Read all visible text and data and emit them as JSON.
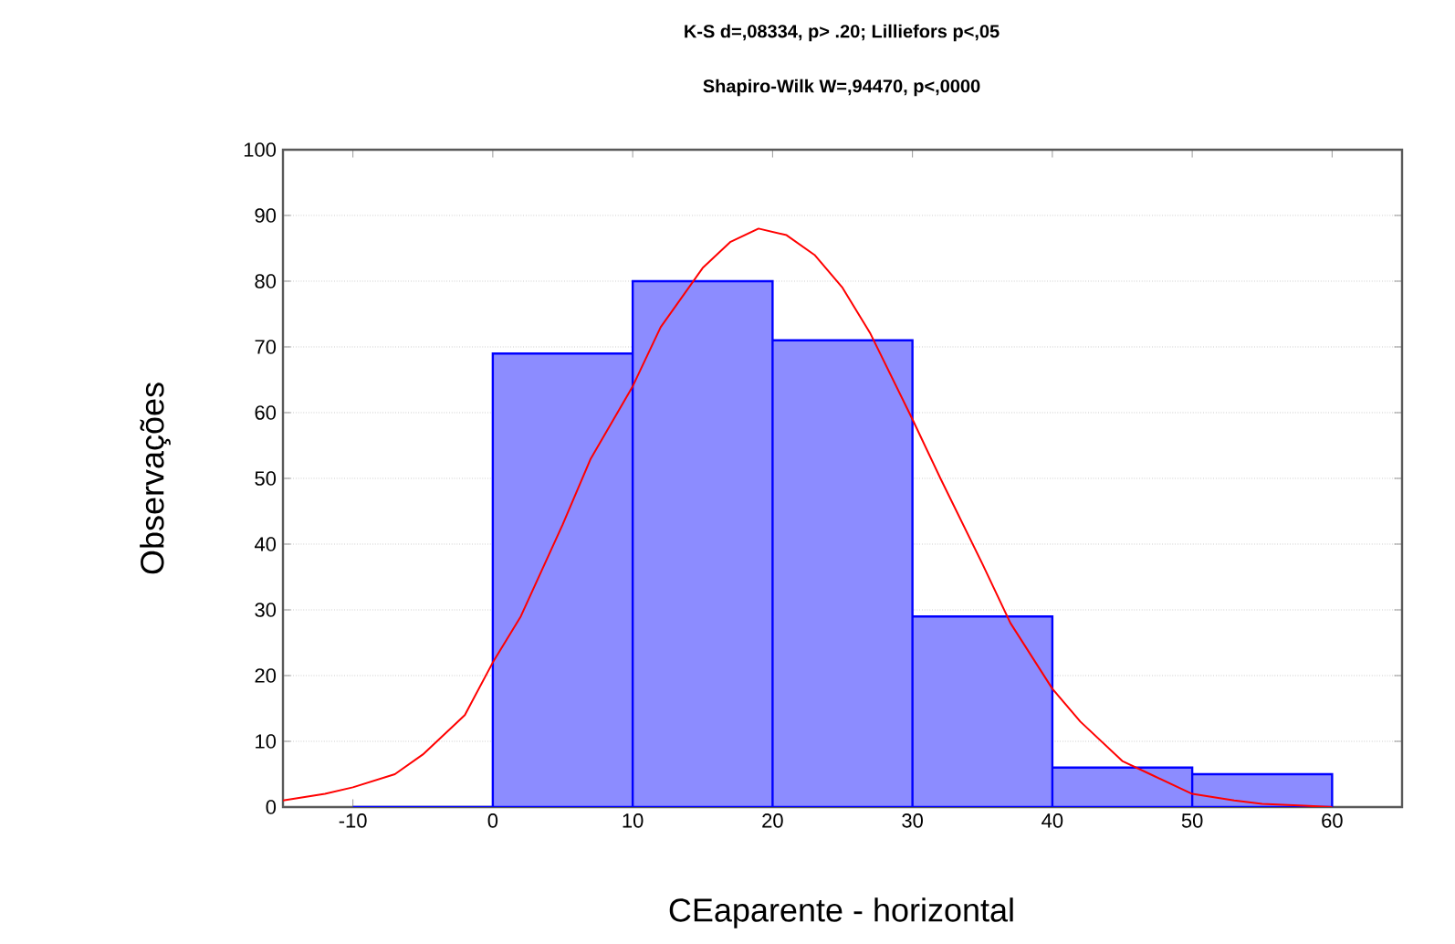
{
  "chart_data": {
    "type": "histogram",
    "title": "K-S d=,08334, p> .20; Lilliefors p<,05",
    "subtitle": "Shapiro-Wilk W=,94470, p<,0000",
    "xlabel": "CEaparente - horizontal",
    "ylabel": "Observações",
    "bins": [
      -10,
      0,
      10,
      20,
      30,
      40,
      50,
      60
    ],
    "values": [
      0,
      69,
      80,
      71,
      29,
      6,
      5
    ],
    "color": "#8c8cff",
    "series": [
      {
        "type": "line",
        "color": "#ff0000",
        "x": [
          -15,
          -12,
          -10,
          -7,
          -5,
          -2,
          0,
          2,
          5,
          7,
          10,
          12,
          15,
          17,
          19,
          21,
          23,
          25,
          27,
          30,
          32,
          35,
          37,
          40,
          42,
          45,
          47,
          50,
          53,
          55,
          58,
          60
        ],
        "values": [
          1,
          2,
          3,
          5,
          8,
          14,
          22,
          29,
          43,
          53,
          64,
          73,
          82,
          86,
          88,
          87,
          84,
          79,
          72,
          59,
          50,
          37,
          28,
          18,
          13,
          7,
          5,
          2,
          1,
          0.5,
          0.2,
          0
        ]
      }
    ],
    "xlim": [
      -15,
      65
    ],
    "ylim": [
      0,
      100
    ],
    "xticks": [
      -10,
      0,
      10,
      20,
      30,
      40,
      50,
      60
    ],
    "yticks": [
      0,
      10,
      20,
      30,
      40,
      50,
      60,
      70,
      80,
      90,
      100
    ],
    "grid": "y",
    "marker": "none",
    "line_style": "solid"
  }
}
